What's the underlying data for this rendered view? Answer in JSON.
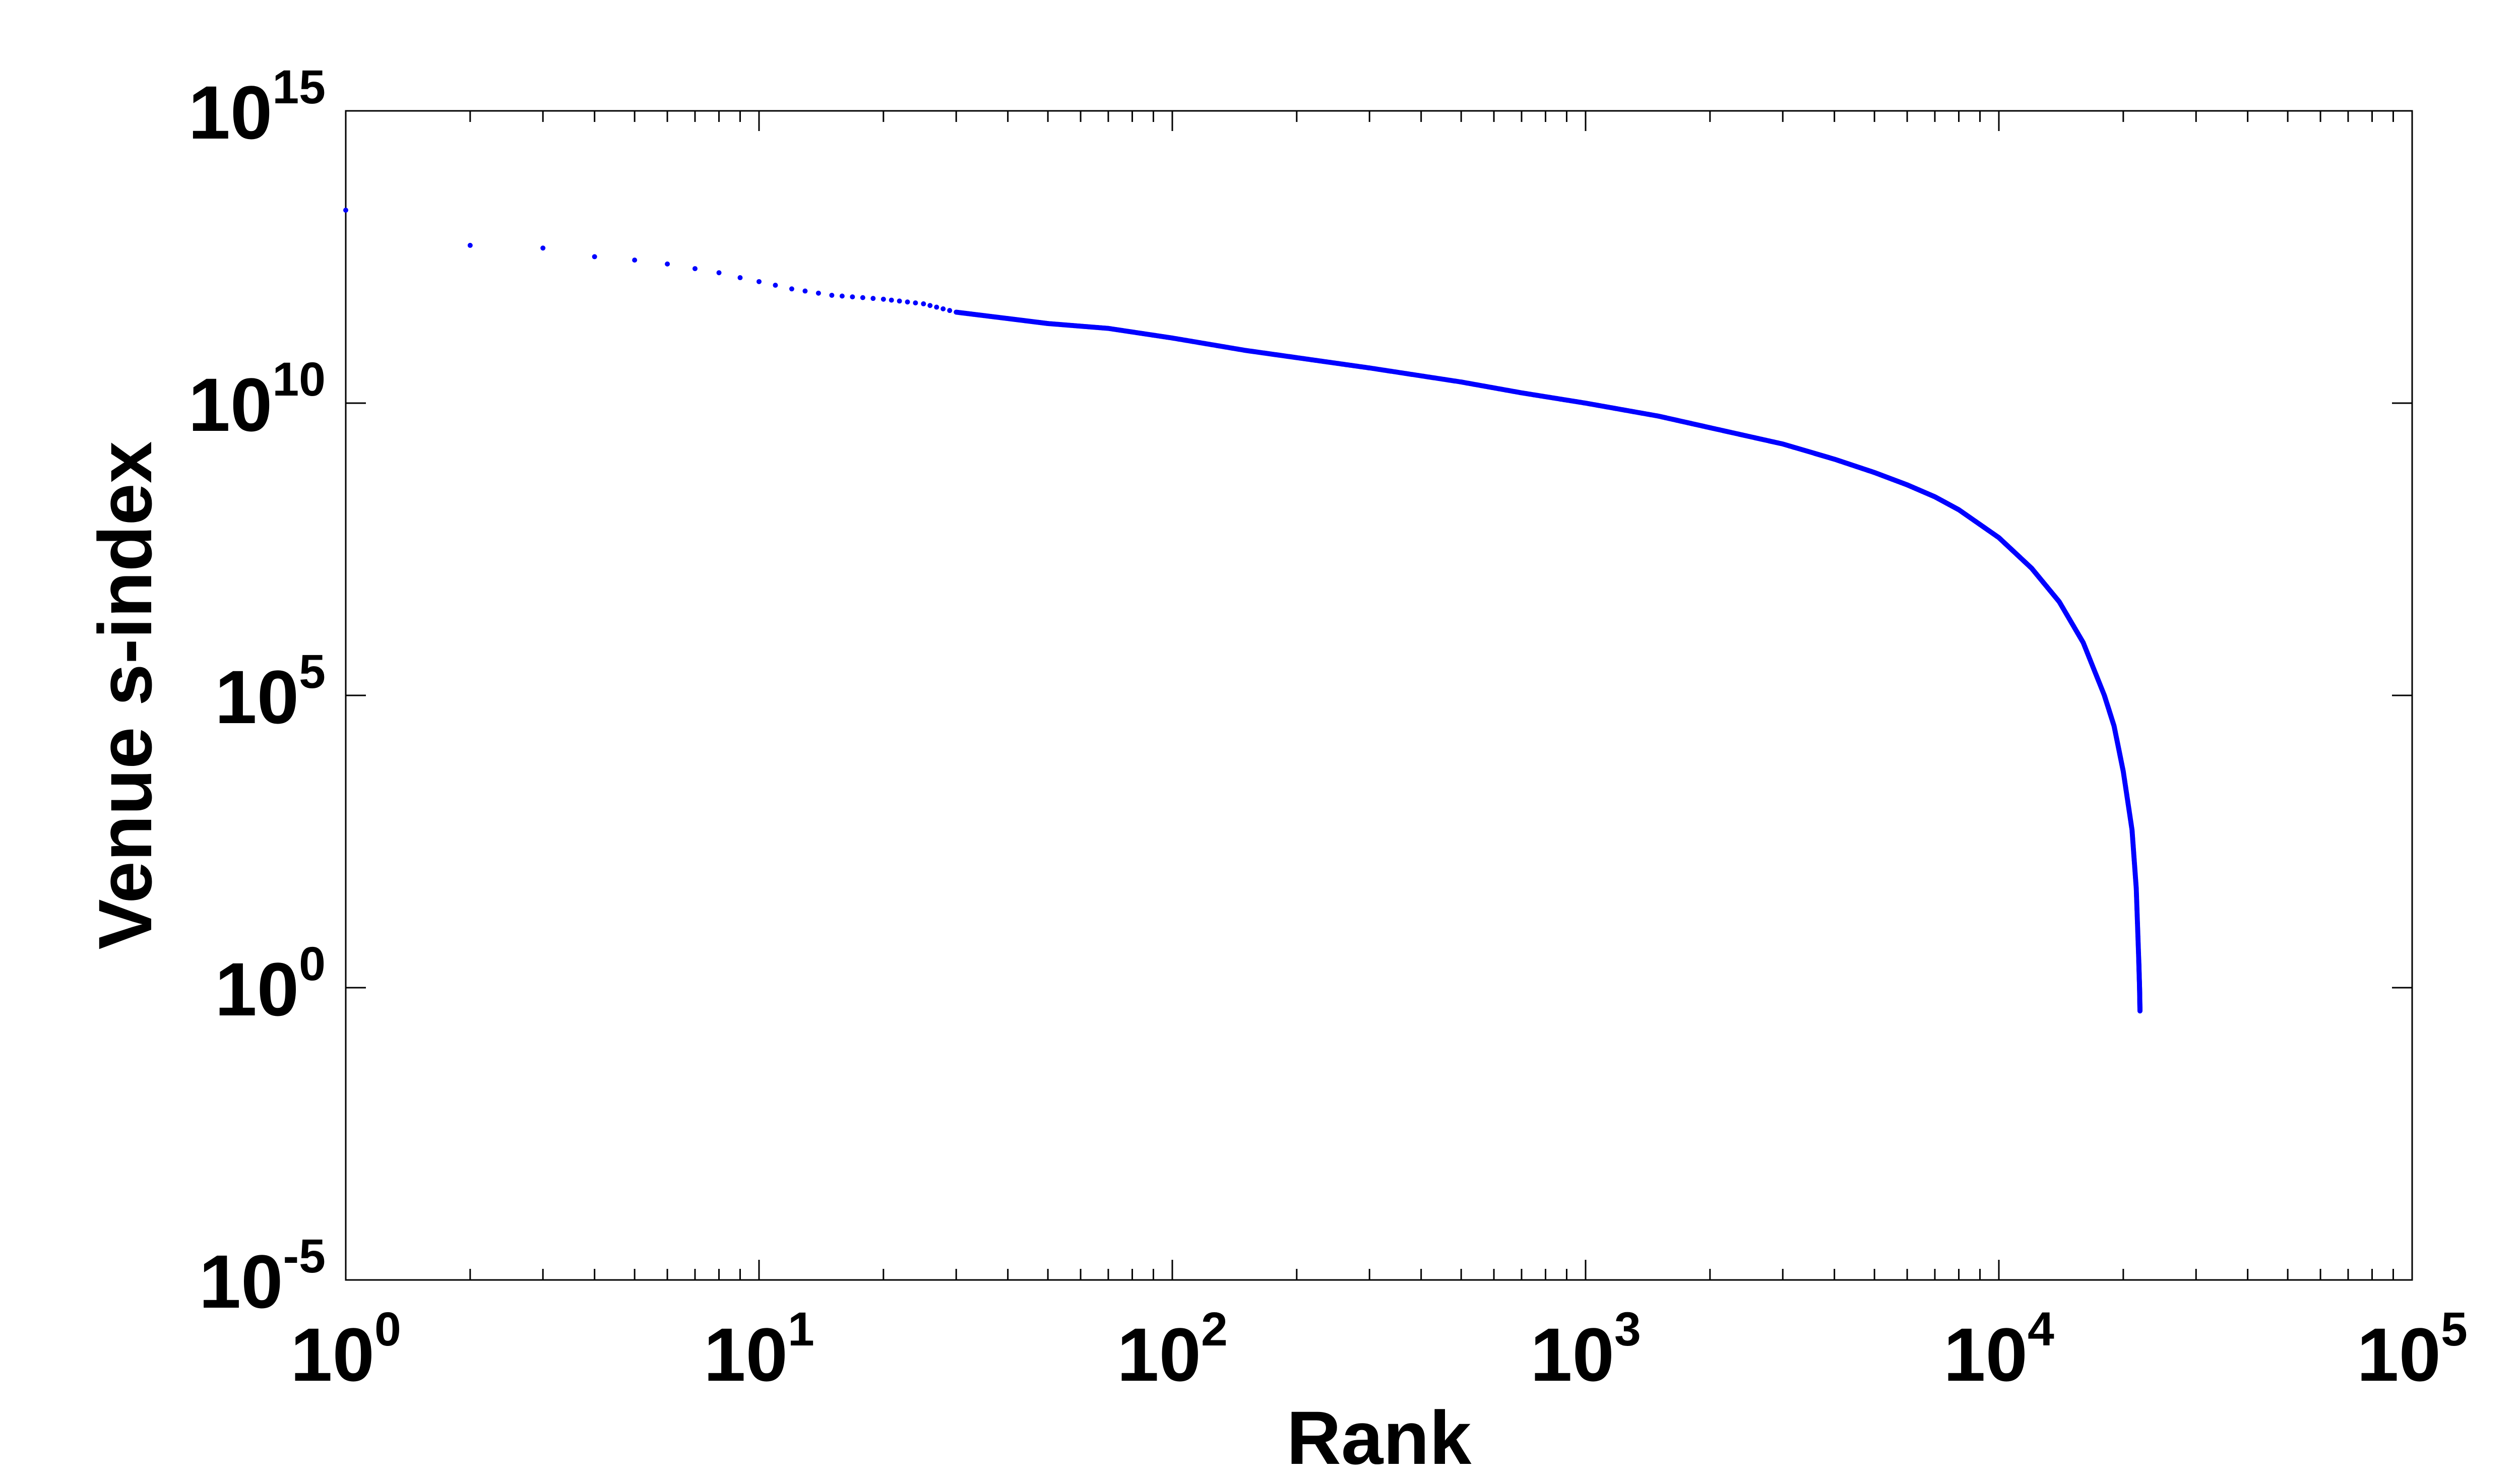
{
  "chart_data": {
    "type": "scatter",
    "title": "",
    "xlabel": "Rank",
    "ylabel": "Venue s-index",
    "xscale": "log",
    "yscale": "log",
    "xlim": [
      1,
      100000
    ],
    "ylim": [
      1e-05,
      1000000000000000
    ],
    "grid": false,
    "legend": "none",
    "series_color": "#0000ff",
    "x_ticks": [
      {
        "base": "10",
        "exp": "0",
        "value": 1
      },
      {
        "base": "10",
        "exp": "1",
        "value": 10
      },
      {
        "base": "10",
        "exp": "2",
        "value": 100
      },
      {
        "base": "10",
        "exp": "3",
        "value": 1000
      },
      {
        "base": "10",
        "exp": "4",
        "value": 10000
      },
      {
        "base": "10",
        "exp": "5",
        "value": 100000
      }
    ],
    "y_ticks": [
      {
        "base": "10",
        "exp": "-5",
        "value": 1e-05
      },
      {
        "base": "10",
        "exp": "0",
        "value": 1
      },
      {
        "base": "10",
        "exp": "5",
        "value": 100000
      },
      {
        "base": "10",
        "exp": "10",
        "value": 10000000000
      },
      {
        "base": "10",
        "exp": "15",
        "value": 1000000000000000
      }
    ],
    "series": [
      {
        "values": [
          [
            1,
            20000000000000.0
          ],
          [
            2,
            5000000000000.0
          ],
          [
            3,
            4500000000000.0
          ],
          [
            4,
            3200000000000.0
          ],
          [
            5,
            2800000000000.0
          ],
          [
            6,
            2400000000000.0
          ],
          [
            7,
            2000000000000.0
          ],
          [
            8,
            1700000000000.0
          ],
          [
            9,
            1400000000000.0
          ],
          [
            10,
            1200000000000.0
          ],
          [
            12,
            900000000000.0
          ],
          [
            15,
            700000000000.0
          ],
          [
            20,
            600000000000.0
          ],
          [
            25,
            500000000000.0
          ],
          [
            30,
            360000000000.0
          ],
          [
            40,
            280000000000.0
          ],
          [
            50,
            230000000000.0
          ],
          [
            70,
            190000000000.0
          ],
          [
            100,
            130000000000.0
          ],
          [
            150,
            80000000000.0
          ],
          [
            200,
            60000000000.0
          ],
          [
            300,
            40000000000.0
          ],
          [
            500,
            23000000000.0
          ],
          [
            700,
            15000000000.0
          ],
          [
            1000,
            10000000000.0
          ],
          [
            1500,
            6000000000.0
          ],
          [
            2000,
            3800000000.0
          ],
          [
            3000,
            2000000000.0
          ],
          [
            4000,
            1100000000.0
          ],
          [
            5000,
            650000000.0
          ],
          [
            6000,
            400000000.0
          ],
          [
            7000,
            250000000.0
          ],
          [
            8000,
            150000000.0
          ],
          [
            10000,
            50000000.0
          ],
          [
            12000,
            15000000.0
          ],
          [
            14000,
            4000000.0
          ],
          [
            16000,
            800000.0
          ],
          [
            18000,
            100000.0
          ],
          [
            19000,
            30000.0
          ],
          [
            20000,
            5000.0
          ],
          [
            21000,
            500
          ],
          [
            21500,
            50
          ],
          [
            21800,
            3
          ],
          [
            21900,
            1
          ],
          [
            21950,
            0.4
          ]
        ]
      }
    ]
  }
}
